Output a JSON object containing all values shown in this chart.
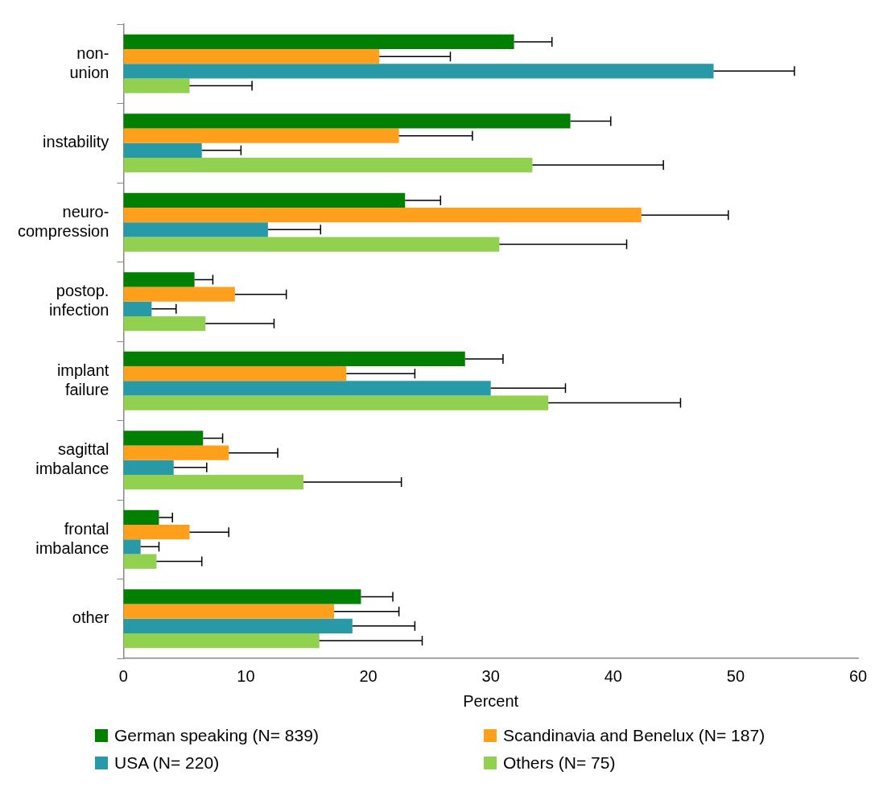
{
  "chart_data": {
    "type": "bar",
    "orientation": "horizontal",
    "xlabel": "Percent",
    "categories": [
      "non-union",
      "instability",
      "neuro-compression",
      "postop. infection",
      "implant failure",
      "sagittal imbalance",
      "frontal imbalance",
      "other"
    ],
    "series": [
      {
        "name": "German speaking (N= 839)",
        "color": "#007f00",
        "values": [
          31.9,
          36.5,
          23.0,
          5.8,
          27.9,
          6.5,
          2.9,
          19.4
        ],
        "errors": [
          [
            31.9,
            35.0
          ],
          [
            36.5,
            39.8
          ],
          [
            23.0,
            25.9
          ],
          [
            5.8,
            7.3
          ],
          [
            27.9,
            31.0
          ],
          [
            6.5,
            8.1
          ],
          [
            2.9,
            4.0
          ],
          [
            19.4,
            22.0
          ]
        ]
      },
      {
        "name": "Scandinavia and Benelux (N= 187)",
        "color": "#ffa01c",
        "values": [
          20.9,
          22.5,
          42.3,
          9.1,
          18.2,
          8.6,
          5.4,
          17.2
        ],
        "errors": [
          [
            20.9,
            26.7
          ],
          [
            22.5,
            28.5
          ],
          [
            42.3,
            49.4
          ],
          [
            9.1,
            13.3
          ],
          [
            18.2,
            23.8
          ],
          [
            8.6,
            12.6
          ],
          [
            5.4,
            8.6
          ],
          [
            17.2,
            22.5
          ]
        ]
      },
      {
        "name": "USA (N= 220)",
        "color": "#2899a7",
        "values": [
          48.2,
          6.4,
          11.8,
          2.3,
          30.0,
          4.1,
          1.4,
          18.7
        ],
        "errors": [
          [
            48.2,
            54.8
          ],
          [
            6.4,
            9.6
          ],
          [
            11.8,
            16.1
          ],
          [
            2.3,
            4.3
          ],
          [
            30.0,
            36.1
          ],
          [
            4.1,
            6.8
          ],
          [
            1.4,
            2.9
          ],
          [
            18.7,
            23.8
          ]
        ]
      },
      {
        "name": "Others (N= 75)",
        "color": "#92d050",
        "values": [
          5.4,
          33.4,
          30.7,
          6.7,
          34.7,
          14.7,
          2.7,
          16.0
        ],
        "errors": [
          [
            5.4,
            10.5
          ],
          [
            33.4,
            44.1
          ],
          [
            30.7,
            41.1
          ],
          [
            6.7,
            12.3
          ],
          [
            34.7,
            45.5
          ],
          [
            14.7,
            22.7
          ],
          [
            2.7,
            6.4
          ],
          [
            16.0,
            24.4
          ]
        ]
      }
    ],
    "xlim": [
      0,
      60
    ],
    "xticks": [
      0,
      10,
      20,
      30,
      40,
      50,
      60
    ],
    "grid": false,
    "legend": "bottom"
  }
}
